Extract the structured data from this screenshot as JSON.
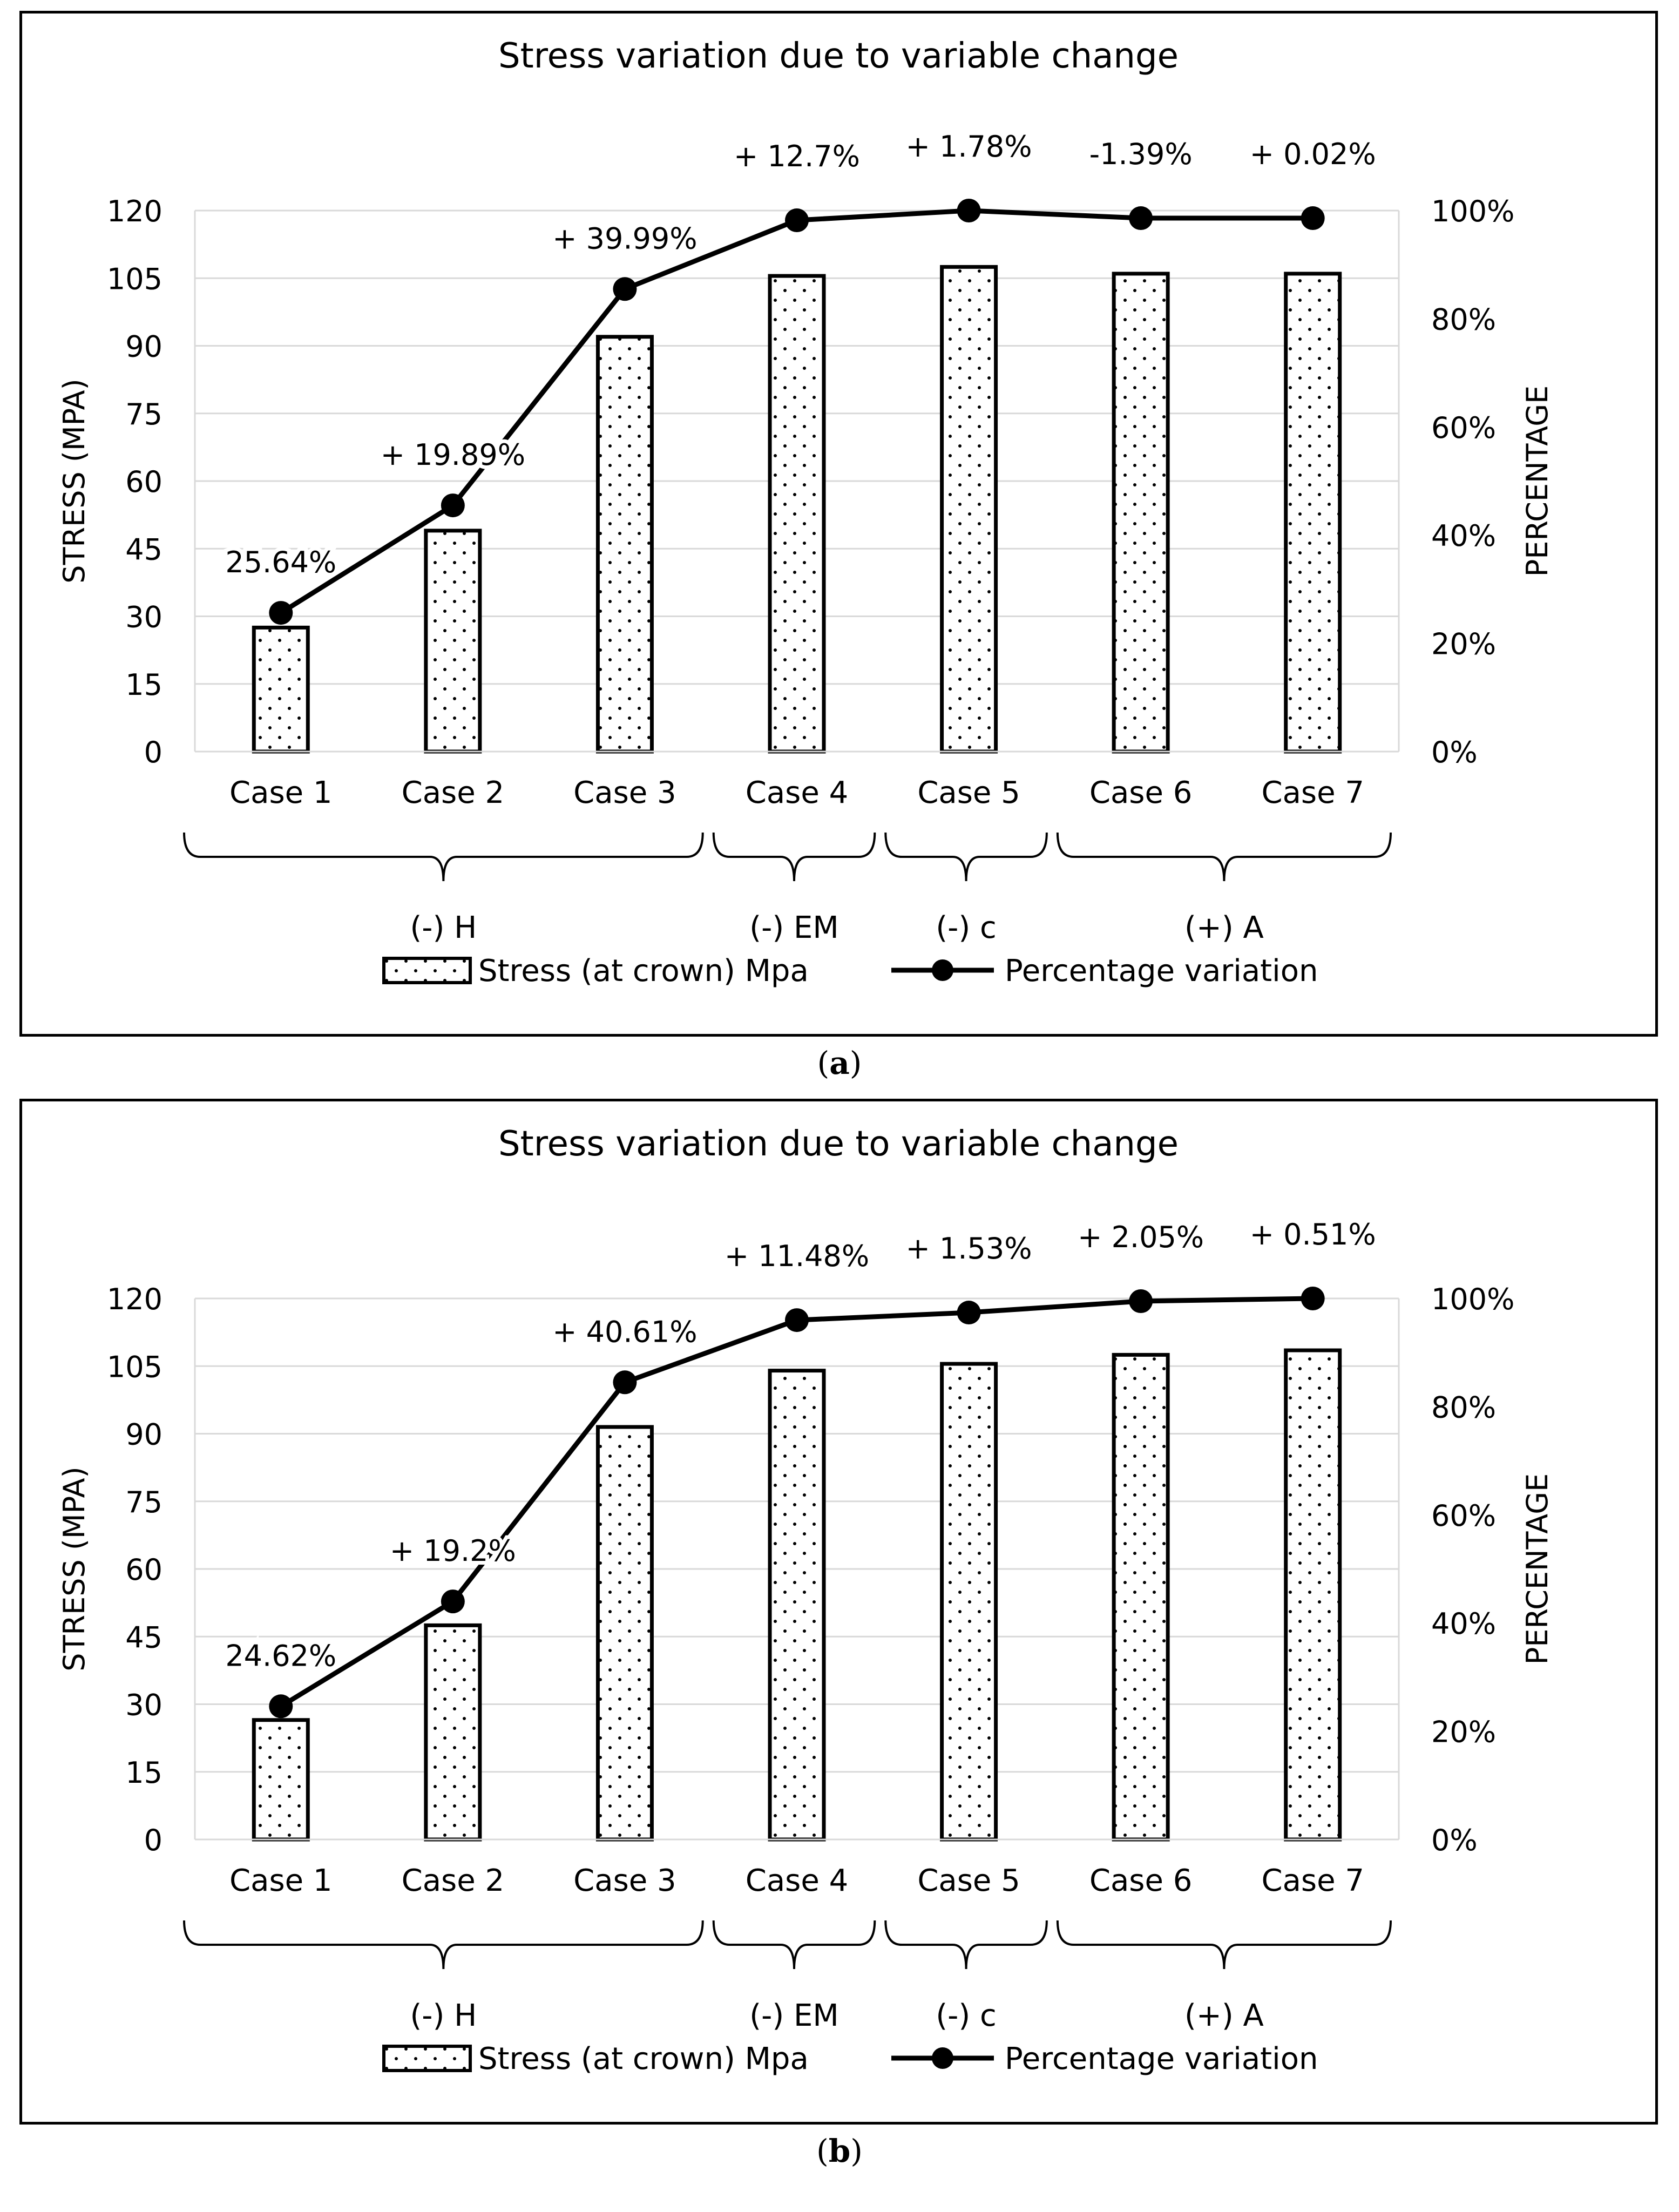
{
  "chart_data": [
    {
      "type": "bar",
      "panel_label": "a",
      "title": "Stress variation due to variable change",
      "categories": [
        "Case 1",
        "Case 2",
        "Case 3",
        "Case 4",
        "Case 5",
        "Case 6",
        "Case 7"
      ],
      "ylabel": "STRESS  (MPA)",
      "y2label": "PERCENTAGE",
      "ylim": [
        0,
        120
      ],
      "yticks": [
        0,
        15,
        30,
        45,
        60,
        75,
        90,
        105,
        120
      ],
      "y2lim": [
        0,
        100
      ],
      "y2ticks": [
        "0%",
        "20%",
        "40%",
        "60%",
        "80%",
        "100%"
      ],
      "grid": true,
      "series": [
        {
          "name": "Stress (at crown) Mpa",
          "type": "bar",
          "axis": "left",
          "values": [
            27.5,
            49,
            92,
            105.5,
            107.5,
            106,
            106
          ]
        },
        {
          "name": "Percentage variation",
          "type": "line",
          "axis": "right",
          "values": [
            25.64,
            45.5,
            85.5,
            98.2,
            100,
            98.6,
            98.6
          ]
        }
      ],
      "point_labels": [
        "25.64%",
        "+ 19.89%",
        "+ 39.99%",
        "+ 12.7%",
        "+ 1.78%",
        "-1.39%",
        "+ 0.02%"
      ],
      "groups": [
        {
          "label": "(-) H",
          "from": 0,
          "to": 2
        },
        {
          "label": "(-) EM",
          "from": 3,
          "to": 3
        },
        {
          "label": "(-) c",
          "from": 4,
          "to": 4
        },
        {
          "label": "(+) A",
          "from": 5,
          "to": 6
        }
      ],
      "legend": "bottom"
    },
    {
      "type": "bar",
      "panel_label": "b",
      "title": "Stress variation due to variable change",
      "categories": [
        "Case 1",
        "Case 2",
        "Case 3",
        "Case 4",
        "Case 5",
        "Case 6",
        "Case 7"
      ],
      "ylabel": "STRESS  (MPA)",
      "y2label": "PERCENTAGE",
      "ylim": [
        0,
        120
      ],
      "yticks": [
        0,
        15,
        30,
        45,
        60,
        75,
        90,
        105,
        120
      ],
      "y2lim": [
        0,
        100
      ],
      "y2ticks": [
        "0%",
        "20%",
        "40%",
        "60%",
        "80%",
        "100%"
      ],
      "grid": true,
      "series": [
        {
          "name": "Stress (at crown) Mpa",
          "type": "bar",
          "axis": "left",
          "values": [
            26.5,
            47.5,
            91.5,
            104,
            105.5,
            107.5,
            108.5
          ]
        },
        {
          "name": "Percentage variation",
          "type": "line",
          "axis": "right",
          "values": [
            24.62,
            44,
            84.5,
            96,
            97.4,
            99.5,
            100
          ]
        }
      ],
      "point_labels": [
        "24.62%",
        "+ 19.2%",
        "+ 40.61%",
        "+ 11.48%",
        "+ 1.53%",
        "+ 2.05%",
        "+ 0.51%"
      ],
      "groups": [
        {
          "label": "(-) H",
          "from": 0,
          "to": 2
        },
        {
          "label": "(-) EM",
          "from": 3,
          "to": 3
        },
        {
          "label": "(-) c",
          "from": 4,
          "to": 4
        },
        {
          "label": "(+) A",
          "from": 5,
          "to": 6
        }
      ],
      "legend": "bottom"
    }
  ]
}
